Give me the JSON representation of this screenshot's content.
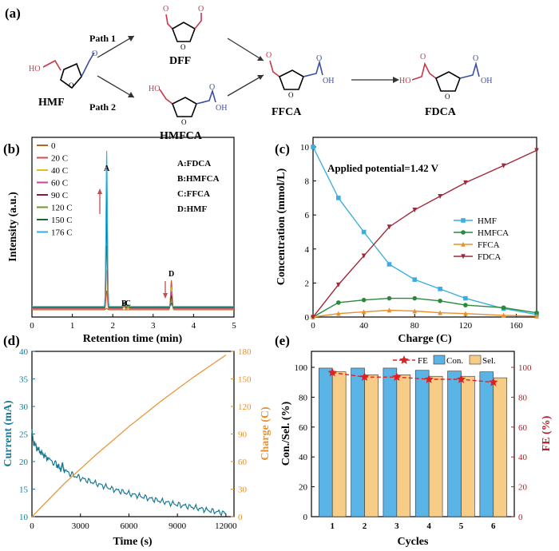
{
  "panel_a": {
    "label": "(a)",
    "compounds": [
      {
        "id": "HMF",
        "name": "HMF"
      },
      {
        "id": "DFF",
        "name": "DFF"
      },
      {
        "id": "HMFCA",
        "name": "HMFCA"
      },
      {
        "id": "FFCA",
        "name": "FFCA"
      },
      {
        "id": "FDCA",
        "name": "FDCA"
      }
    ],
    "path1": "Path 1",
    "path2": "Path 2",
    "atom_O": "O",
    "atom_HO": "HO",
    "atom_OH": "OH",
    "colors": {
      "aldehyde": "#c8384a",
      "acid": "#3a4fa0",
      "ring": "#000000"
    }
  },
  "chart_data": [
    {
      "panel": "(b)",
      "type": "line",
      "xlabel": "Retention time (min)",
      "ylabel": "Intensity (a.u.)",
      "xlim": [
        0,
        5
      ],
      "xticks": [
        0,
        1,
        2,
        3,
        4,
        5
      ],
      "legend": [
        {
          "name": "0",
          "color": "#b5651d"
        },
        {
          "name": "20 C",
          "color": "#d94a4a"
        },
        {
          "name": "40 C",
          "color": "#e0c020"
        },
        {
          "name": "60 C",
          "color": "#d040a0"
        },
        {
          "name": "90 C",
          "color": "#8b1a3a"
        },
        {
          "name": "120 C",
          "color": "#6a9a30"
        },
        {
          "name": "150 C",
          "color": "#1a6a2a"
        },
        {
          "name": "176 C",
          "color": "#30b0e0"
        }
      ],
      "peak_key": [
        "A:FDCA",
        "B:HMFCA",
        "C:FFCA",
        "D:HMF"
      ],
      "peak_labels": [
        {
          "label": "A",
          "x": 1.85
        },
        {
          "label": "B",
          "x": 2.28
        },
        {
          "label": "C",
          "x": 2.38
        },
        {
          "label": "D",
          "x": 3.45
        }
      ],
      "peaks": [
        {
          "name": "A",
          "x": 1.85,
          "width": 0.025,
          "heights": [
            0.01,
            0.12,
            0.25,
            0.4,
            0.55,
            0.7,
            0.82,
            1.0
          ]
        },
        {
          "name": "B",
          "x": 2.28,
          "width": 0.03,
          "heights": [
            0.0,
            0.02,
            0.03,
            0.035,
            0.03,
            0.025,
            0.02,
            0.015
          ]
        },
        {
          "name": "C",
          "x": 2.38,
          "width": 0.03,
          "heights": [
            0.0,
            0.01,
            0.015,
            0.02,
            0.02,
            0.015,
            0.01,
            0.008
          ]
        },
        {
          "name": "D",
          "x": 3.45,
          "width": 0.025,
          "heights": [
            0.19,
            0.17,
            0.14,
            0.11,
            0.08,
            0.05,
            0.025,
            0.01
          ]
        }
      ]
    },
    {
      "panel": "(c)",
      "type": "line",
      "annotation": "Applied potential=1.42 V",
      "xlabel": "Charge (C)",
      "ylabel": "Concentration (mmol/L)",
      "xlim": [
        0,
        176
      ],
      "ylim": [
        0,
        10
      ],
      "xticks": [
        0,
        40,
        80,
        120,
        160
      ],
      "yticks": [
        0,
        2,
        4,
        6,
        8,
        10
      ],
      "x": [
        0,
        20,
        40,
        60,
        80,
        100,
        120,
        150,
        176
      ],
      "series": [
        {
          "name": "HMF",
          "color": "#3aaee0",
          "marker": "square",
          "values": [
            10,
            7.0,
            5.0,
            3.1,
            2.2,
            1.65,
            1.1,
            0.5,
            0.15
          ]
        },
        {
          "name": "HMFCA",
          "color": "#2a8a3a",
          "marker": "circle",
          "values": [
            0,
            0.85,
            1.0,
            1.1,
            1.1,
            0.95,
            0.7,
            0.55,
            0.25
          ]
        },
        {
          "name": "FFCA",
          "color": "#e8902a",
          "marker": "triangle",
          "values": [
            0,
            0.2,
            0.3,
            0.4,
            0.35,
            0.25,
            0.2,
            0.1,
            0.05
          ]
        },
        {
          "name": "FDCA",
          "color": "#a0283a",
          "marker": "triangle-down",
          "values": [
            0,
            1.9,
            3.6,
            5.3,
            6.3,
            7.1,
            7.9,
            8.9,
            9.8
          ]
        }
      ]
    },
    {
      "panel": "(d)",
      "type": "line",
      "xlabel": "Time (s)",
      "ylabel_left": "Current (mA)",
      "ylabel_right": "Charge (C)",
      "xlim": [
        0,
        12500
      ],
      "ylim_left": [
        10,
        40
      ],
      "ylim_right": [
        0,
        180
      ],
      "xticks": [
        0,
        3000,
        6000,
        9000,
        12000
      ],
      "yticks_left": [
        10,
        15,
        20,
        25,
        30,
        35,
        40
      ],
      "yticks_right": [
        0,
        30,
        60,
        90,
        120,
        150,
        180
      ],
      "series": [
        {
          "name": "Current",
          "color": "#1a7a96",
          "axis": "left",
          "x": [
            0,
            100,
            300,
            600,
            1000,
            1500,
            1800,
            1900,
            2000,
            2500,
            3000,
            4000,
            5000,
            6000,
            7000,
            8000,
            9000,
            10000,
            11000,
            12000
          ],
          "values": [
            25.5,
            23.5,
            22.5,
            21.5,
            20.5,
            19.5,
            18.6,
            19.5,
            18.4,
            17.6,
            17.0,
            16.0,
            15.0,
            14.2,
            13.5,
            12.8,
            12.2,
            11.7,
            11.1,
            10.6
          ]
        },
        {
          "name": "Charge",
          "color": "#e8902a",
          "axis": "right",
          "x": [
            0,
            2000,
            4000,
            6000,
            8000,
            10000,
            12000
          ],
          "values": [
            0,
            36,
            68,
            98,
            126,
            152,
            176
          ]
        }
      ]
    },
    {
      "panel": "(e)",
      "type": "bar",
      "xlabel": "Cycles",
      "ylabel_left": "Con./Sel. (%)",
      "ylabel_right": "FE (%)",
      "categories": [
        "1",
        "2",
        "3",
        "4",
        "5",
        "6"
      ],
      "ylim": [
        0,
        100
      ],
      "yticks": [
        0,
        20,
        40,
        60,
        80,
        100
      ],
      "series": [
        {
          "name": "Con.",
          "color": "#5ab4e6",
          "values": [
            99.5,
            99.5,
            99.5,
            98,
            97.5,
            97
          ]
        },
        {
          "name": "Sel.",
          "color": "#f6cc86",
          "values": [
            97,
            95,
            95,
            94,
            94,
            93
          ]
        },
        {
          "name": "FE",
          "color": "#e02020",
          "type": "line",
          "values": [
            96.5,
            93.5,
            93.5,
            92,
            92,
            90
          ]
        }
      ]
    }
  ]
}
